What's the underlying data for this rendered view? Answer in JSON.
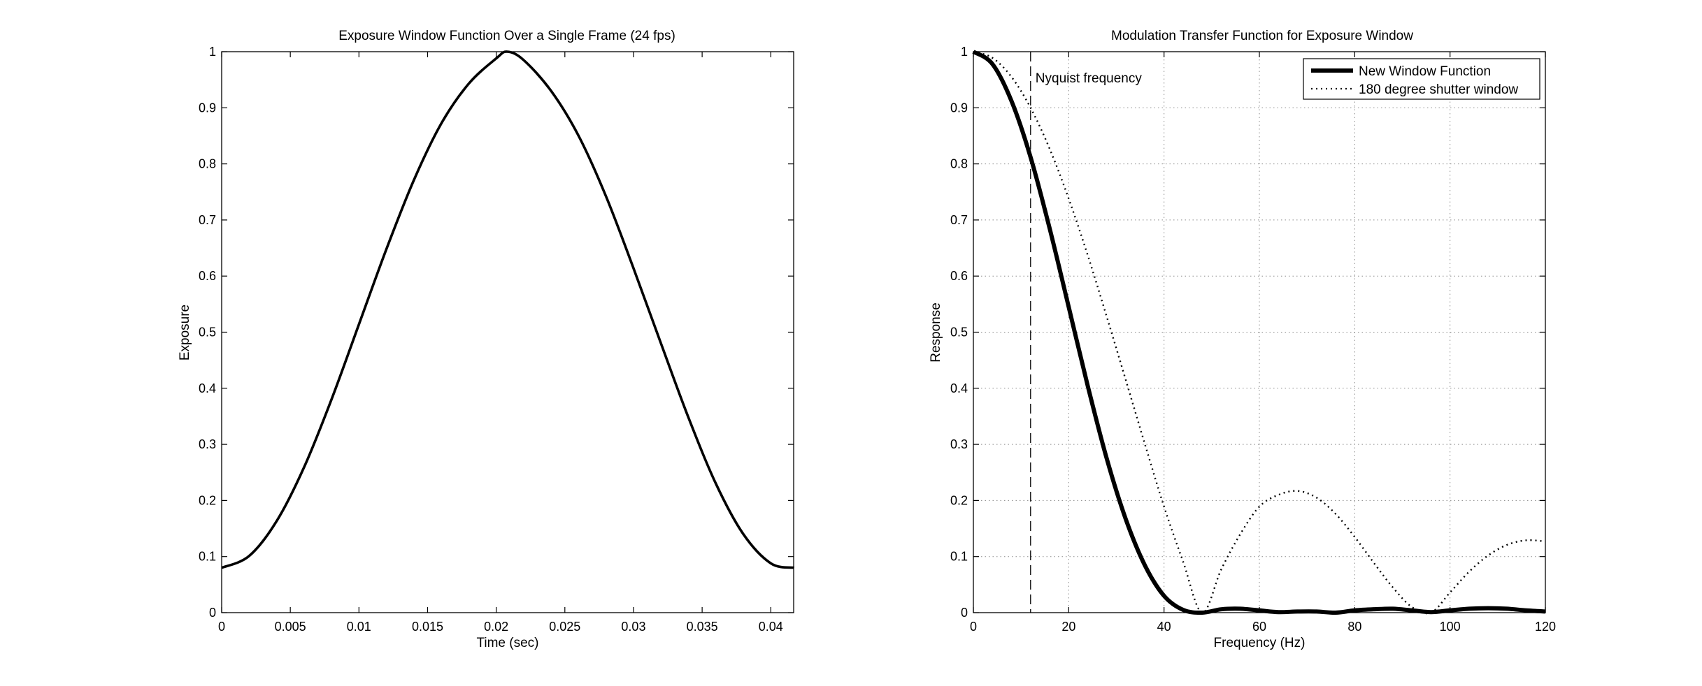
{
  "chart_data": [
    {
      "type": "line",
      "title": "Exposure Window Function Over a Single Frame (24 fps)",
      "xlabel": "Time (sec)",
      "ylabel": "Exposure",
      "xlim": [
        0,
        0.041667
      ],
      "ylim": [
        0,
        1
      ],
      "grid": false,
      "xticks": [
        0,
        0.005,
        0.01,
        0.015,
        0.02,
        0.025,
        0.03,
        0.035,
        0.04
      ],
      "xtick_labels": [
        "0",
        "0.005",
        "0.01",
        "0.015",
        "0.02",
        "0.025",
        "0.03",
        "0.035",
        "0.04"
      ],
      "yticks": [
        0,
        0.1,
        0.2,
        0.3,
        0.4,
        0.5,
        0.6,
        0.7,
        0.8,
        0.9,
        1
      ],
      "ytick_labels": [
        "0",
        "0.1",
        "0.2",
        "0.3",
        "0.4",
        "0.5",
        "0.6",
        "0.7",
        "0.8",
        "0.9",
        "1"
      ],
      "series": [
        {
          "style": "solid",
          "color": "#000000",
          "x": [
            0,
            0.002,
            0.004,
            0.006,
            0.008,
            0.01,
            0.012,
            0.014,
            0.016,
            0.018,
            0.02,
            0.0208,
            0.022,
            0.024,
            0.026,
            0.028,
            0.03,
            0.032,
            0.034,
            0.036,
            0.038,
            0.04,
            0.0417
          ],
          "y": [
            0.08,
            0.101,
            0.163,
            0.259,
            0.38,
            0.514,
            0.648,
            0.771,
            0.872,
            0.943,
            0.988,
            1.0,
            0.985,
            0.93,
            0.85,
            0.742,
            0.614,
            0.48,
            0.348,
            0.23,
            0.14,
            0.088,
            0.08
          ]
        }
      ]
    },
    {
      "type": "line",
      "title": "Modulation Transfer Function for Exposure Window",
      "xlabel": "Frequency (Hz)",
      "ylabel": "Response",
      "xlim": [
        0,
        120
      ],
      "ylim": [
        0,
        1
      ],
      "grid": true,
      "legend": "top-right",
      "xticks": [
        0,
        20,
        40,
        60,
        80,
        100,
        120
      ],
      "xtick_labels": [
        "0",
        "20",
        "40",
        "60",
        "80",
        "100",
        "120"
      ],
      "yticks": [
        0,
        0.1,
        0.2,
        0.3,
        0.4,
        0.5,
        0.6,
        0.7,
        0.8,
        0.9,
        1
      ],
      "ytick_labels": [
        "0",
        "0.1",
        "0.2",
        "0.3",
        "0.4",
        "0.5",
        "0.6",
        "0.7",
        "0.8",
        "0.9",
        "1"
      ],
      "annotation": {
        "text": "Nyquist frequency",
        "x": 12
      },
      "series": [
        {
          "name": "New Window Function",
          "style": "solid-thick",
          "color": "#000000",
          "x": [
            0,
            4,
            8,
            12,
            16,
            20,
            24,
            28,
            32,
            36,
            40,
            44,
            48,
            52,
            56,
            60,
            64,
            68,
            72,
            76,
            80,
            84,
            88,
            92,
            96,
            100,
            104,
            108,
            112,
            116,
            120
          ],
          "y": [
            1.0,
            0.978,
            0.912,
            0.812,
            0.685,
            0.545,
            0.404,
            0.274,
            0.166,
            0.084,
            0.03,
            0.005,
            0.0,
            0.006,
            0.007,
            0.004,
            0.001,
            0.002,
            0.002,
            0.0,
            0.004,
            0.006,
            0.007,
            0.004,
            0.001,
            0.004,
            0.007,
            0.008,
            0.007,
            0.004,
            0.002
          ]
        },
        {
          "name": "180 degree shutter window",
          "style": "dotted",
          "color": "#000000",
          "x": [
            0,
            4,
            8,
            12,
            16,
            20,
            24,
            28,
            32,
            36,
            40,
            44,
            48,
            52,
            56,
            60,
            64,
            68,
            72,
            76,
            80,
            84,
            88,
            92,
            96,
            100,
            104,
            108,
            112,
            116,
            120
          ],
          "y": [
            1.0,
            0.989,
            0.955,
            0.9,
            0.827,
            0.738,
            0.637,
            0.527,
            0.414,
            0.3,
            0.189,
            0.091,
            0.0,
            0.077,
            0.14,
            0.189,
            0.21,
            0.217,
            0.205,
            0.176,
            0.135,
            0.089,
            0.045,
            0.01,
            0.0,
            0.036,
            0.073,
            0.102,
            0.121,
            0.129,
            0.127
          ]
        }
      ]
    }
  ]
}
